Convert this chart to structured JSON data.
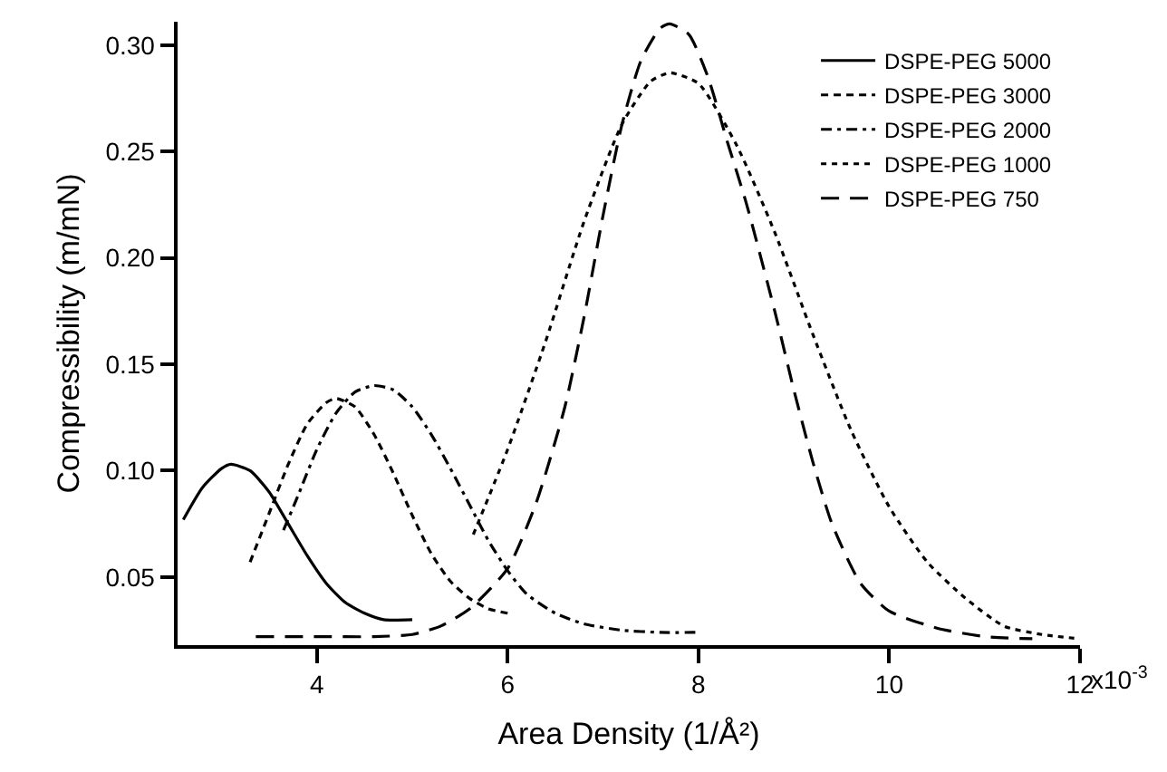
{
  "chart_data": {
    "type": "line",
    "xlabel": "Area Density (1/Å²)",
    "ylabel": "Compressibility (m/mN)",
    "xlim": [
      2.54,
      12
    ],
    "ylim": [
      0.018,
      0.311
    ],
    "xticks": [
      4,
      6,
      8,
      10,
      12
    ],
    "annotations": [
      "x10$^{-3}$"
    ],
    "yticks": [
      {
        "value": 0.05,
        "label": "0.05"
      },
      {
        "value": 0.1,
        "label": "0.10"
      },
      {
        "value": 0.15,
        "label": "0.15"
      },
      {
        "value": 0.2,
        "label": "0.20"
      },
      {
        "value": 0.25,
        "label": "0.25"
      },
      {
        "value": 0.3,
        "label": "0.30"
      }
    ],
    "grid": false,
    "legend": "top right",
    "marker": "none",
    "series": [
      {
        "name": "DSPE-PEG 5000",
        "color": "#000000",
        "line_style": "solid",
        "x": [
          2.6,
          2.8,
          3.0,
          3.1,
          3.3,
          3.5,
          3.7,
          3.9,
          4.1,
          4.3,
          4.5,
          4.7,
          5.0
        ],
        "values": [
          0.077,
          0.092,
          0.101,
          0.103,
          0.1,
          0.09,
          0.075,
          0.06,
          0.047,
          0.038,
          0.033,
          0.03,
          0.03
        ]
      },
      {
        "name": "DSPE-PEG 3000",
        "color": "#000000",
        "line_style": "dashed",
        "x": [
          3.3,
          3.5,
          3.7,
          3.9,
          4.1,
          4.2,
          4.4,
          4.6,
          4.8,
          5.0,
          5.2,
          5.4,
          5.6,
          5.8,
          6.0
        ],
        "values": [
          0.057,
          0.08,
          0.103,
          0.122,
          0.132,
          0.134,
          0.13,
          0.117,
          0.099,
          0.079,
          0.061,
          0.048,
          0.04,
          0.035,
          0.033
        ]
      },
      {
        "name": "DSPE-PEG 2000",
        "color": "#000000",
        "line_style": "dashdot",
        "x": [
          3.65,
          3.8,
          4.0,
          4.2,
          4.4,
          4.6,
          4.8,
          5.0,
          5.2,
          5.4,
          5.6,
          5.8,
          6.0,
          6.2,
          6.5,
          6.8,
          7.2,
          7.6,
          8.0
        ],
        "values": [
          0.072,
          0.088,
          0.11,
          0.127,
          0.137,
          0.14,
          0.138,
          0.13,
          0.117,
          0.101,
          0.084,
          0.067,
          0.053,
          0.042,
          0.033,
          0.028,
          0.025,
          0.024,
          0.024
        ]
      },
      {
        "name": "DSPE-PEG 1000",
        "color": "#000000",
        "line_style": "dotted",
        "x": [
          5.64,
          6.0,
          6.4,
          6.8,
          7.2,
          7.5,
          7.7,
          8.0,
          8.4,
          8.8,
          9.2,
          9.6,
          10.0,
          10.4,
          10.8,
          11.2,
          11.6,
          12.0
        ],
        "values": [
          0.07,
          0.11,
          0.161,
          0.217,
          0.263,
          0.283,
          0.287,
          0.282,
          0.253,
          0.212,
          0.164,
          0.119,
          0.083,
          0.057,
          0.04,
          0.027,
          0.023,
          0.021
        ]
      },
      {
        "name": "DSPE-PEG 750",
        "color": "#000000",
        "line_style": "longdash",
        "x": [
          3.36,
          4.0,
          4.6,
          5.0,
          5.3,
          5.6,
          6.0,
          6.3,
          6.6,
          6.8,
          7.0,
          7.2,
          7.4,
          7.6,
          7.7,
          7.9,
          8.1,
          8.3,
          8.5,
          8.8,
          9.0,
          9.2,
          9.4,
          9.7,
          10.0,
          10.5,
          11.0,
          11.5
        ],
        "values": [
          0.022,
          0.022,
          0.022,
          0.023,
          0.027,
          0.035,
          0.054,
          0.085,
          0.13,
          0.172,
          0.22,
          0.263,
          0.293,
          0.308,
          0.31,
          0.305,
          0.285,
          0.255,
          0.226,
          0.175,
          0.138,
          0.104,
          0.075,
          0.047,
          0.034,
          0.026,
          0.022,
          0.021
        ]
      }
    ]
  }
}
